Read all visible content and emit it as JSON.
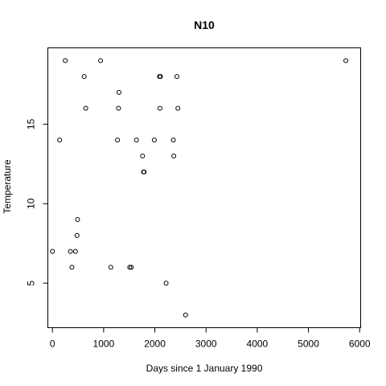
{
  "chart_data": {
    "type": "scatter",
    "title": "N10",
    "xlabel": "Days since 1 January 1990",
    "ylabel": "Temperature",
    "xlim": [
      -90,
      6020
    ],
    "ylim": [
      2.2,
      19.8
    ],
    "xticks": [
      0,
      1000,
      2000,
      3000,
      4000,
      5000,
      6000
    ],
    "yticks": [
      5,
      10,
      15
    ],
    "grid": false,
    "marker": "open-circle",
    "points": [
      {
        "x": 0,
        "y": 7
      },
      {
        "x": 140,
        "y": 14
      },
      {
        "x": 250,
        "y": 19
      },
      {
        "x": 350,
        "y": 7
      },
      {
        "x": 380,
        "y": 6
      },
      {
        "x": 450,
        "y": 7
      },
      {
        "x": 480,
        "y": 8
      },
      {
        "x": 490,
        "y": 9
      },
      {
        "x": 620,
        "y": 18
      },
      {
        "x": 650,
        "y": 16
      },
      {
        "x": 940,
        "y": 19
      },
      {
        "x": 1140,
        "y": 6
      },
      {
        "x": 1270,
        "y": 14
      },
      {
        "x": 1290,
        "y": 16
      },
      {
        "x": 1300,
        "y": 17
      },
      {
        "x": 1510,
        "y": 6
      },
      {
        "x": 1540,
        "y": 6
      },
      {
        "x": 1640,
        "y": 14
      },
      {
        "x": 1760,
        "y": 13
      },
      {
        "x": 1780,
        "y": 12
      },
      {
        "x": 1790,
        "y": 12
      },
      {
        "x": 1990,
        "y": 14
      },
      {
        "x": 2090,
        "y": 18
      },
      {
        "x": 2100,
        "y": 16
      },
      {
        "x": 2110,
        "y": 18
      },
      {
        "x": 2220,
        "y": 5
      },
      {
        "x": 2360,
        "y": 14
      },
      {
        "x": 2370,
        "y": 13
      },
      {
        "x": 2430,
        "y": 18
      },
      {
        "x": 2450,
        "y": 16
      },
      {
        "x": 2600,
        "y": 3
      },
      {
        "x": 5730,
        "y": 19
      }
    ]
  }
}
